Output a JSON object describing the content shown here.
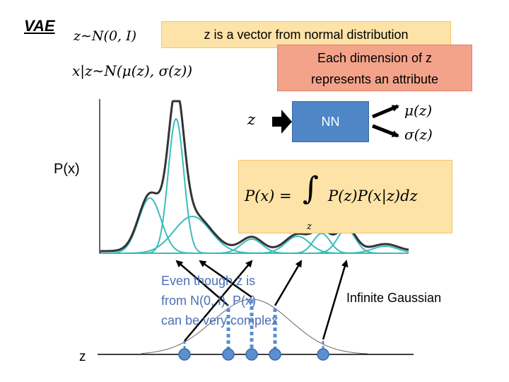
{
  "title": "VAE",
  "equations": {
    "z_prior": "z∼N(0, I)",
    "x_given_z": "x|z∼N(μ(z), σ(z))",
    "integral_lhs": "P(x) =",
    "integral_sign": "∫",
    "integral_sub": "z",
    "integral_rhs": "P(z)P(x|z)dz"
  },
  "notes": {
    "z_vector": "z is a vector from normal distribution",
    "dimension_line1": "Each dimension of z",
    "dimension_line2": "represents an attribute",
    "complex_line1": "Even though z is",
    "complex_line2": "from N(0, I), P(x)",
    "complex_line3": "can be very complex",
    "infinite_gaussian": "Infinite Gaussian"
  },
  "network": {
    "input_label": "z",
    "box_label": "NN",
    "output_mu": "μ(z)",
    "output_sigma": "σ(z)"
  },
  "axes": {
    "px_label": "P(x)",
    "z_label": "z"
  },
  "colors": {
    "mixture_curve": "#333333",
    "component_curves": "#3bbcbc",
    "z_points": "#5b8fd0",
    "arrow": "#000000",
    "note_orange": "#fde3a7",
    "note_red": "#f3a38a",
    "nn_box": "#4f86c6",
    "complex_text": "#4a6fb5"
  }
}
